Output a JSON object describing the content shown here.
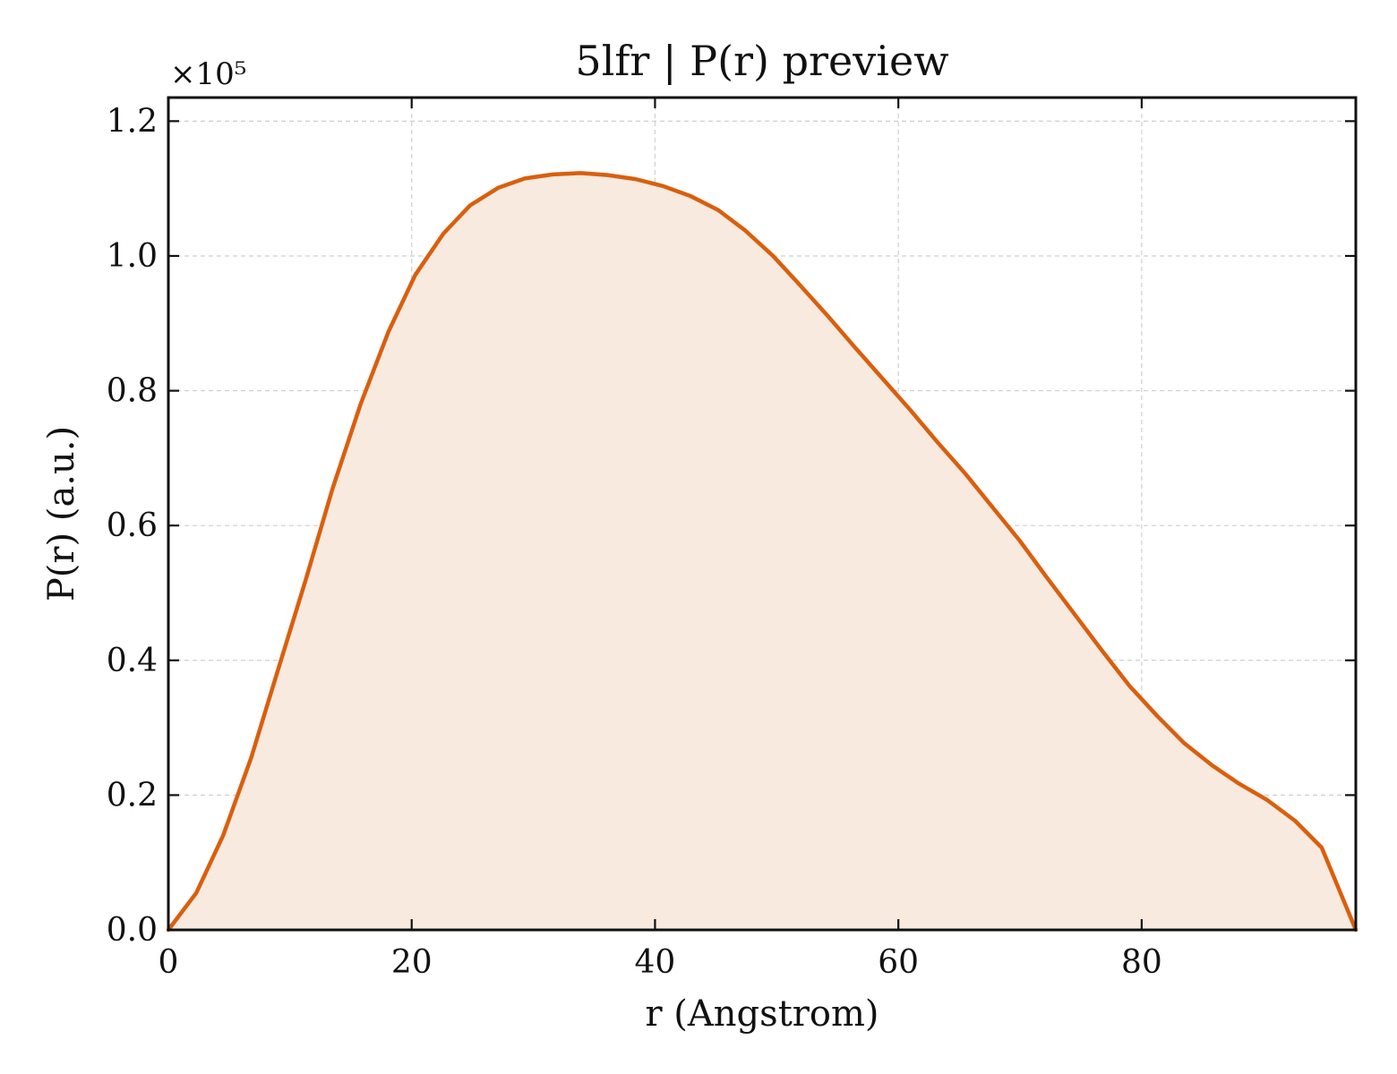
{
  "chart_data": {
    "type": "area",
    "title": "5lfr | P(r) preview",
    "xlabel": "r (Angstrom)",
    "ylabel": "P(r) (a.u.)",
    "y_offset_label": "×10⁵",
    "xlim": [
      0,
      97.6
    ],
    "ylim": [
      0,
      1.235
    ],
    "xticks": [
      0,
      20,
      40,
      60,
      80
    ],
    "xtick_labels": [
      "0",
      "20",
      "40",
      "60",
      "80"
    ],
    "yticks": [
      0.0,
      0.2,
      0.4,
      0.6,
      0.8,
      1.0,
      1.2
    ],
    "ytick_labels": [
      "0.0",
      "0.2",
      "0.4",
      "0.6",
      "0.8",
      "1.0",
      "1.2"
    ],
    "grid": true,
    "line_color": "#d95f0e",
    "fill_color": "#f8eadf",
    "series": [
      {
        "x": [
          0,
          2.3,
          4.5,
          6.8,
          9.0,
          11.3,
          13.5,
          15.8,
          18.1,
          20.3,
          22.6,
          24.8,
          27.1,
          29.3,
          31.6,
          33.9,
          36.1,
          38.4,
          40.6,
          42.9,
          45.2,
          47.4,
          49.7,
          51.9,
          54.2,
          56.4,
          58.7,
          61.0,
          63.2,
          65.5,
          67.7,
          70.0,
          72.2,
          74.5,
          76.8,
          79.0,
          81.3,
          83.5,
          85.8,
          88.0,
          90.3,
          92.6,
          94.8,
          97.6
        ],
        "y": [
          0.0,
          0.055,
          0.14,
          0.255,
          0.385,
          0.52,
          0.655,
          0.78,
          0.888,
          0.972,
          1.033,
          1.075,
          1.101,
          1.115,
          1.121,
          1.123,
          1.12,
          1.114,
          1.104,
          1.089,
          1.068,
          1.038,
          1.0,
          0.957,
          0.911,
          0.865,
          0.818,
          0.771,
          0.724,
          0.677,
          0.628,
          0.577,
          0.523,
          0.468,
          0.413,
          0.362,
          0.317,
          0.277,
          0.244,
          0.217,
          0.193,
          0.162,
          0.122,
          0.0
        ]
      }
    ]
  }
}
